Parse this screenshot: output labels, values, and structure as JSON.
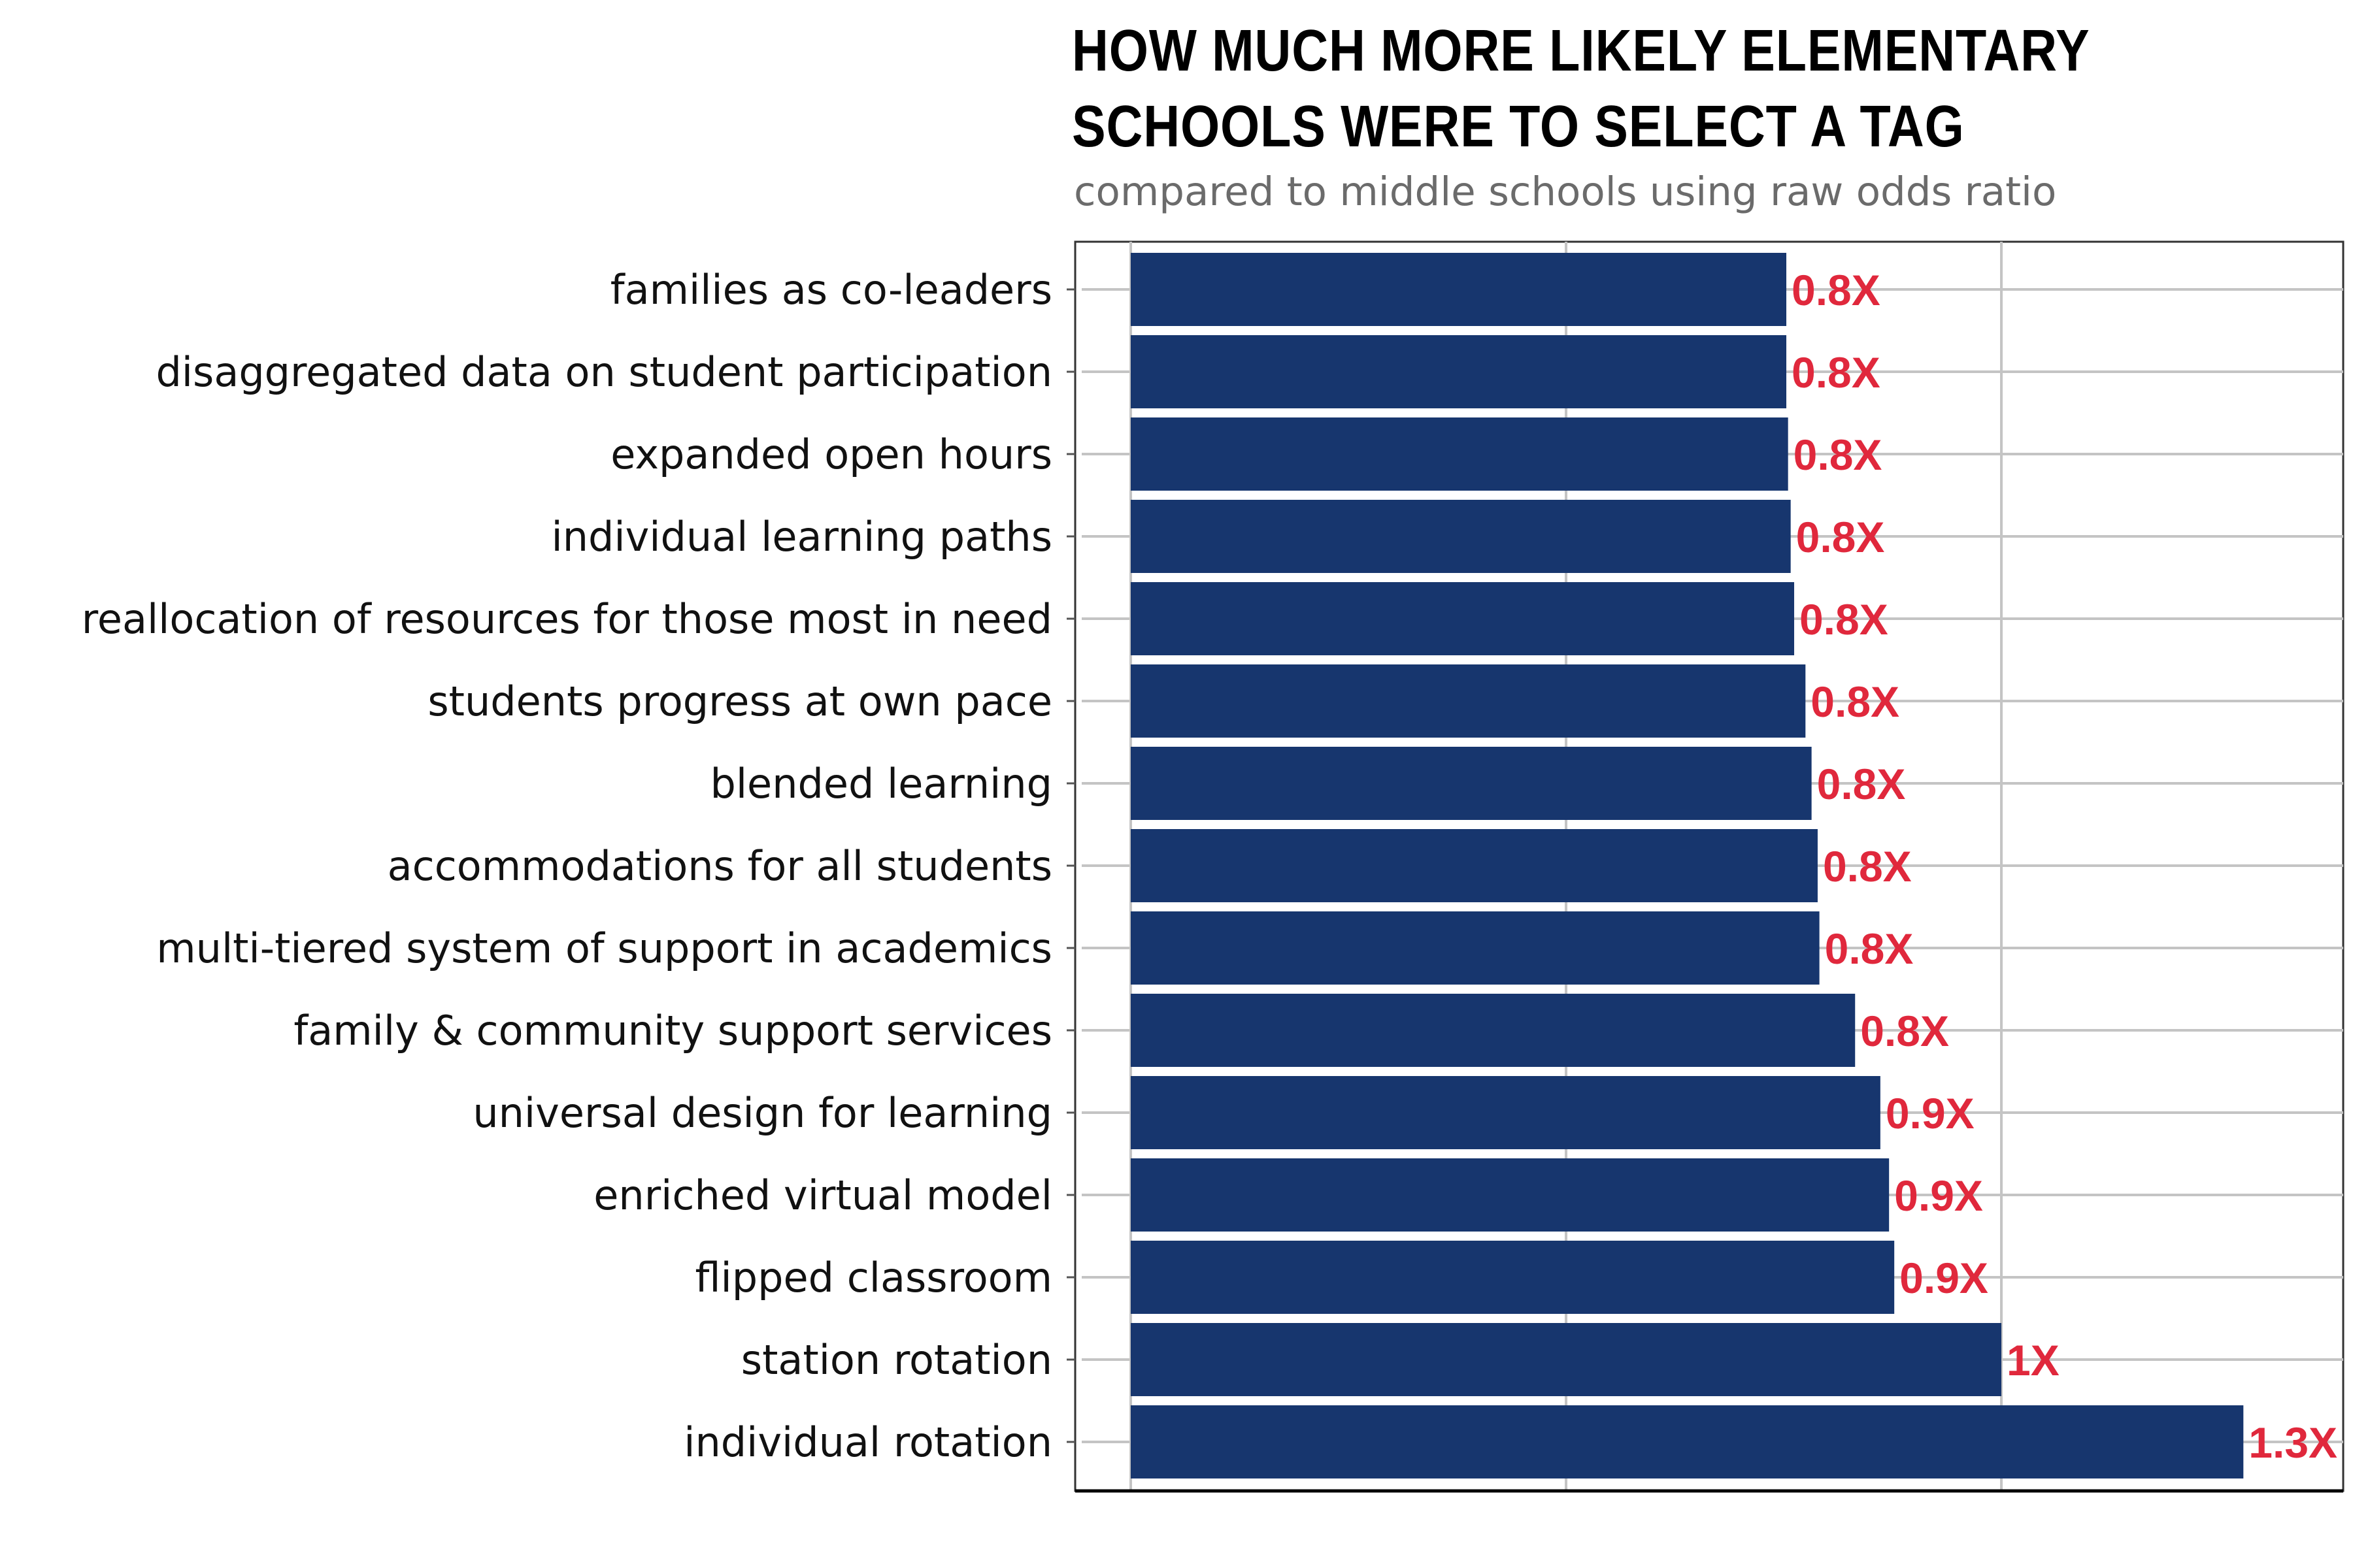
{
  "chart_data": {
    "type": "bar",
    "orientation": "horizontal",
    "title": "HOW MUCH MORE LIKELY ELEMENTARY SCHOOLS WERE TO SELECT A TAG",
    "subtitle": "compared to middle schools using raw odds ratio",
    "xlabel": "",
    "ylabel": "",
    "xlim": [
      0,
      1.4
    ],
    "grid": true,
    "legend": "none",
    "bar_color": "#17366e",
    "label_color": "#e0283c",
    "categories": [
      "families as co-leaders",
      "disaggregated data on student participation",
      "expanded open hours",
      "individual learning paths",
      "reallocation of resources for those most in need",
      "students progress at own pace",
      "blended learning",
      "accommodations for all students",
      "multi-tiered system of support in academics",
      "family & community support services",
      "universal design for learning",
      "enriched virtual model",
      "flipped classroom",
      "station rotation",
      "individual rotation"
    ],
    "values": [
      0.753,
      0.753,
      0.755,
      0.758,
      0.762,
      0.775,
      0.782,
      0.789,
      0.791,
      0.832,
      0.861,
      0.871,
      0.877,
      1.0,
      1.278
    ],
    "data_labels": [
      "0.8X",
      "0.8X",
      "0.8X",
      "0.8X",
      "0.8X",
      "0.8X",
      "0.8X",
      "0.8X",
      "0.8X",
      "0.8X",
      "0.9X",
      "0.9X",
      "0.9X",
      "1X",
      "1.3X"
    ]
  }
}
